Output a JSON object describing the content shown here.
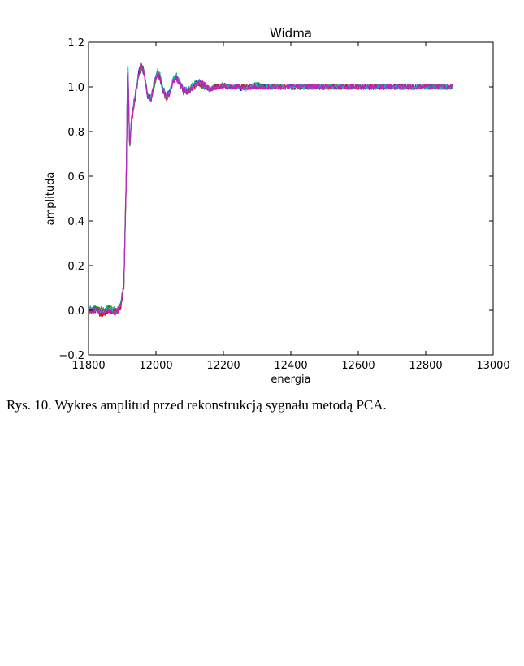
{
  "caption": "Rys. 10. Wykres amplitud przed rekonstrukcją sygnału metodą PCA.",
  "chart_data": {
    "type": "line",
    "title": "Widma",
    "xlabel": "energia",
    "ylabel": "amplituda",
    "xlim": [
      11800,
      13000
    ],
    "ylim": [
      -0.2,
      1.2
    ],
    "x_ticks": [
      "11800",
      "12000",
      "12200",
      "12400",
      "12600",
      "12800",
      "13000"
    ],
    "y_ticks": [
      "−0.2",
      "0.0",
      "0.2",
      "0.4",
      "0.6",
      "0.8",
      "1.0",
      "1.2"
    ],
    "grid": false,
    "legend": "none",
    "x": [
      11800,
      11820,
      11840,
      11860,
      11880,
      11895,
      11905,
      11912,
      11916,
      11919,
      11922,
      11927,
      11935,
      11945,
      11955,
      11965,
      11975,
      11985,
      11995,
      12005,
      12012,
      12020,
      12030,
      12040,
      12050,
      12060,
      12070,
      12080,
      12095,
      12110,
      12125,
      12140,
      12160,
      12180,
      12200,
      12220,
      12240,
      12260,
      12280,
      12300,
      12320,
      12340,
      12360,
      12380,
      12400,
      12450,
      12500,
      12550,
      12600,
      12650,
      12700,
      12750,
      12800,
      12850,
      12880
    ],
    "series": [
      {
        "color": "#1f1fc8",
        "values": [
          0.01,
          0.0,
          -0.01,
          0.0,
          -0.01,
          0.02,
          0.12,
          0.6,
          1.12,
          0.95,
          0.72,
          0.86,
          0.93,
          1.03,
          1.1,
          1.06,
          0.96,
          0.95,
          1.02,
          1.06,
          1.04,
          0.99,
          0.96,
          0.97,
          1.03,
          1.04,
          1.02,
          0.99,
          0.98,
          1.0,
          1.02,
          1.01,
          0.99,
          1.0,
          1.01,
          1.0,
          1.0,
          0.99,
          1.0,
          1.01,
          1.0,
          1.0,
          1.0,
          1.0,
          1.0,
          1.0,
          1.0,
          1.0,
          1.0,
          1.0,
          1.0,
          1.0,
          1.0,
          1.0,
          1.0
        ]
      },
      {
        "color": "#1a8c1a",
        "values": [
          0.0,
          0.01,
          0.0,
          0.01,
          0.0,
          0.02,
          0.13,
          0.62,
          1.1,
          0.93,
          0.71,
          0.85,
          0.92,
          1.02,
          1.1,
          1.07,
          0.97,
          0.94,
          1.01,
          1.07,
          1.05,
          0.99,
          0.95,
          0.98,
          1.03,
          1.05,
          1.02,
          0.98,
          0.98,
          1.01,
          1.02,
          1.0,
          0.99,
          1.0,
          1.01,
          1.0,
          1.0,
          1.0,
          1.0,
          1.01,
          1.0,
          1.0,
          1.0,
          1.0,
          1.0,
          1.0,
          1.0,
          1.0,
          1.0,
          1.0,
          1.0,
          1.0,
          1.0,
          1.0,
          1.0
        ]
      },
      {
        "color": "#d11a1a",
        "values": [
          0.0,
          0.0,
          -0.02,
          0.0,
          -0.01,
          0.01,
          0.11,
          0.58,
          1.11,
          0.94,
          0.72,
          0.84,
          0.92,
          1.02,
          1.09,
          1.06,
          0.96,
          0.94,
          1.02,
          1.06,
          1.04,
          0.99,
          0.95,
          0.97,
          1.02,
          1.04,
          1.02,
          0.98,
          0.98,
          1.0,
          1.01,
          1.01,
          0.99,
          1.0,
          1.0,
          1.0,
          1.0,
          1.0,
          1.0,
          1.0,
          1.0,
          1.0,
          1.0,
          1.0,
          1.0,
          1.0,
          1.0,
          1.0,
          1.0,
          1.0,
          1.0,
          1.0,
          1.0,
          1.0,
          1.0
        ]
      },
      {
        "color": "#19b8b8",
        "values": [
          0.01,
          0.0,
          -0.01,
          0.01,
          -0.01,
          0.02,
          0.12,
          0.61,
          1.16,
          0.96,
          0.73,
          0.86,
          0.93,
          1.03,
          1.1,
          1.06,
          0.96,
          0.95,
          1.02,
          1.07,
          1.05,
          1.0,
          0.96,
          0.97,
          1.03,
          1.05,
          1.02,
          0.99,
          0.98,
          1.01,
          1.02,
          1.01,
          0.99,
          1.0,
          1.01,
          1.0,
          1.0,
          0.99,
          1.0,
          1.01,
          1.0,
          1.0,
          1.0,
          1.0,
          1.0,
          1.0,
          1.0,
          1.0,
          1.0,
          1.0,
          1.0,
          1.0,
          1.0,
          1.0,
          1.0
        ]
      },
      {
        "color": "#c41ec4",
        "values": [
          0.0,
          0.0,
          -0.01,
          0.0,
          -0.01,
          0.02,
          0.12,
          0.6,
          1.12,
          0.95,
          0.72,
          0.85,
          0.92,
          1.02,
          1.1,
          1.06,
          0.96,
          0.94,
          1.02,
          1.06,
          1.04,
          0.99,
          0.96,
          0.97,
          1.03,
          1.04,
          1.02,
          0.99,
          0.98,
          1.0,
          1.02,
          1.01,
          0.99,
          1.0,
          1.0,
          1.0,
          1.0,
          1.0,
          1.0,
          1.0,
          1.0,
          1.0,
          1.0,
          1.0,
          1.0,
          1.0,
          1.0,
          1.0,
          1.0,
          1.0,
          1.0,
          1.0,
          1.0,
          1.0,
          1.0
        ]
      }
    ]
  }
}
